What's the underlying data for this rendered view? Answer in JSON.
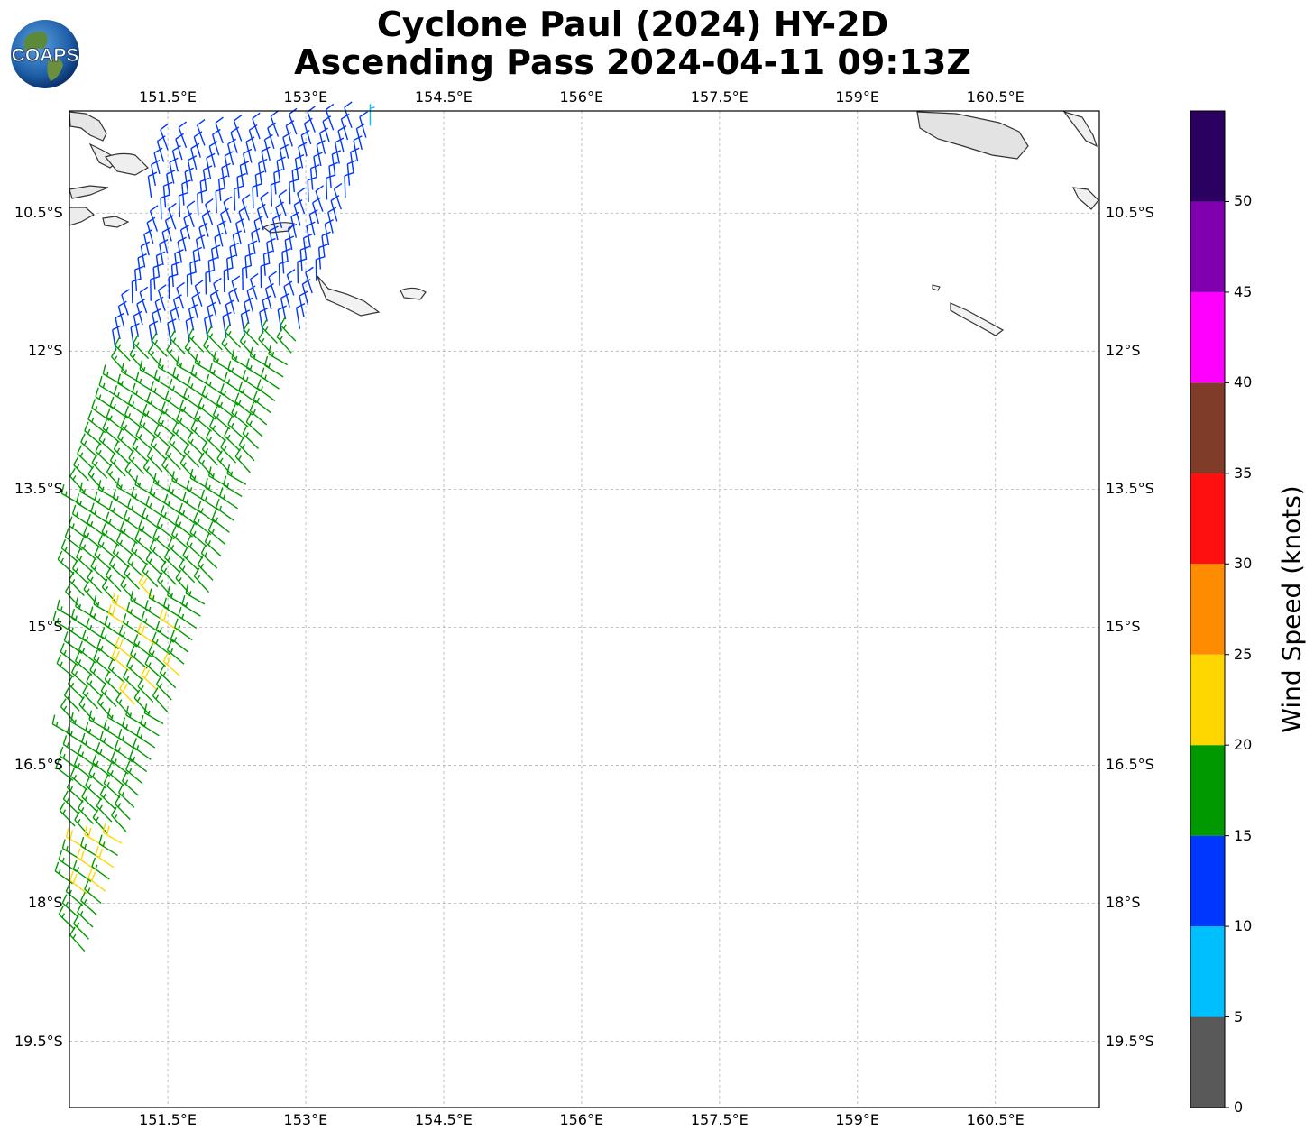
{
  "title_line1": "Cyclone Paul (2024) HY-2D",
  "title_line2": "Ascending Pass 2024-04-11 09:13Z",
  "logo_text": "COAPS",
  "map": {
    "lon_range": [
      150.43,
      161.63
    ],
    "lat_range": [
      -20.22,
      -9.39
    ],
    "lon_ticks": [
      "151.5°E",
      "153°E",
      "154.5°E",
      "156°E",
      "157.5°E",
      "159°E",
      "160.5°E"
    ],
    "lat_ticks": [
      "10.5°S",
      "12°S",
      "13.5°S",
      "15°S",
      "16.5°S",
      "18°S",
      "19.5°S"
    ],
    "lon_tick_values": [
      151.5,
      153.0,
      154.5,
      156.0,
      157.5,
      159.0,
      160.5
    ],
    "lat_tick_values": [
      -10.5,
      -12.0,
      -13.5,
      -15.0,
      -16.5,
      -18.0,
      -19.5
    ],
    "gridlines": true
  },
  "colorbar": {
    "title": "Wind Speed (knots)",
    "bounds": [
      0,
      5,
      10,
      15,
      20,
      25,
      30,
      35,
      40,
      45,
      50,
      55
    ],
    "tick_labels": [
      "0",
      "5",
      "10",
      "15",
      "20",
      "25",
      "30",
      "35",
      "40",
      "45",
      "50"
    ],
    "colors": [
      "#595959",
      "#00bfff",
      "#0037ff",
      "#009900",
      "#ffd700",
      "#ff8c00",
      "#ff1010",
      "#7f3c28",
      "#ff00ff",
      "#8000b0",
      "#2a0060"
    ]
  },
  "wind_barbs": {
    "units": "knots",
    "note_dir": "direction toward which barb staff points (deg clockwise from north)",
    "points": [
      {
        "lon": 151.5,
        "lat": -9.5,
        "speed": 17,
        "dir": 0
      },
      {
        "lon": 151.7,
        "lat": -9.6,
        "speed": 17,
        "dir": 355
      },
      {
        "lon": 151.9,
        "lat": -9.7,
        "speed": 17,
        "dir": 355
      },
      {
        "lon": 152.0,
        "lat": -9.5,
        "speed": 13,
        "dir": 355
      },
      {
        "lon": 152.2,
        "lat": -9.6,
        "speed": 13,
        "dir": 355
      },
      {
        "lon": 152.4,
        "lat": -9.7,
        "speed": 13,
        "dir": 350
      },
      {
        "lon": 152.6,
        "lat": -9.7,
        "speed": 13,
        "dir": 350
      },
      {
        "lon": 152.8,
        "lat": -9.8,
        "speed": 13,
        "dir": 340
      },
      {
        "lon": 153.2,
        "lat": -9.6,
        "speed": 12,
        "dir": 350
      },
      {
        "lon": 153.4,
        "lat": -9.6,
        "speed": 12,
        "dir": 350
      },
      {
        "lon": 153.7,
        "lat": -9.5,
        "speed": 8,
        "dir": 0
      }
    ]
  }
}
